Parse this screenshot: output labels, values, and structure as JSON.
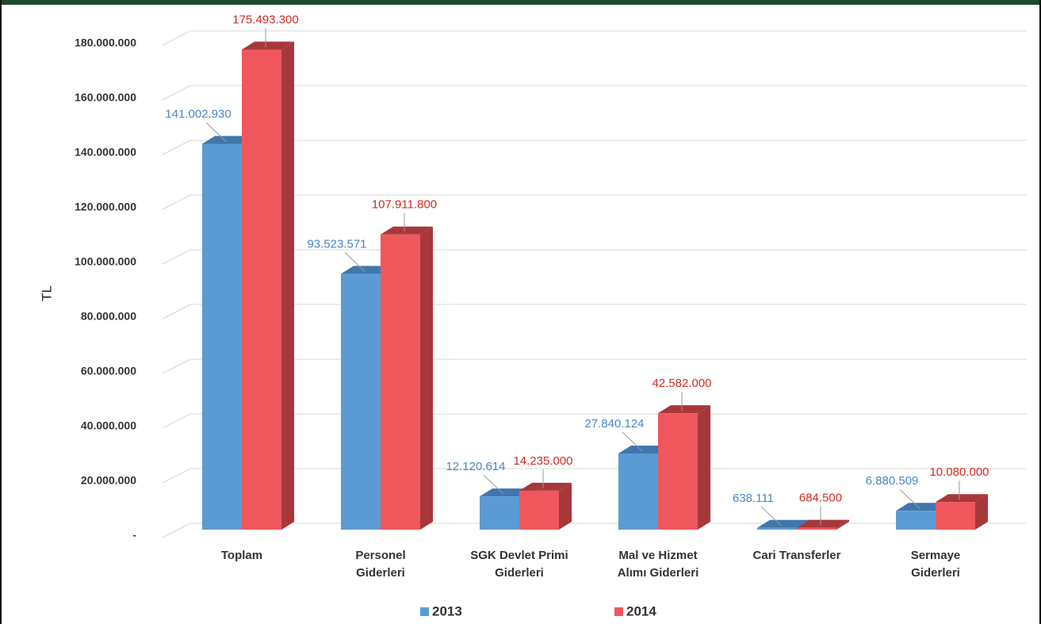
{
  "chart_data": {
    "type": "bar3d",
    "ylabel": "TL",
    "categories": [
      "Toplam",
      "Personel\nGiderleri",
      "SGK Devlet Primi\nGiderleri",
      "Mal ve Hizmet\nAlımı Giderleri",
      "Cari Transferler",
      "Sermaye\nGiderleri"
    ],
    "series": [
      {
        "name": "2013",
        "color": "#5b9bd5",
        "side": "#3f77ad",
        "label_color": "#4a86c8",
        "values": [
          141002930,
          93523571,
          12120614,
          27840124,
          638111,
          6880509
        ],
        "value_labels": [
          "141.002.930",
          "93.523.571",
          "12.120.614",
          "27.840.124",
          "638.111",
          "6.880.509"
        ]
      },
      {
        "name": "2014",
        "color": "#f0575d",
        "side": "#a8373b",
        "label_color": "#d42a22",
        "values": [
          175493300,
          107911800,
          14235000,
          42582000,
          684500,
          10080000
        ],
        "value_labels": [
          "175.493.300",
          "107.911.800",
          "14.235.000",
          "42.582.000",
          "684.500",
          "10.080.000"
        ]
      }
    ],
    "ylim": [
      0,
      180000000
    ],
    "yticks": [
      {
        "value": 0,
        "label": "-"
      },
      {
        "value": 20000000,
        "label": "20.000.000"
      },
      {
        "value": 40000000,
        "label": "40.000.000"
      },
      {
        "value": 60000000,
        "label": "60.000.000"
      },
      {
        "value": 80000000,
        "label": "80.000.000"
      },
      {
        "value": 100000000,
        "label": "100.000.000"
      },
      {
        "value": 120000000,
        "label": "120.000.000"
      },
      {
        "value": 140000000,
        "label": "140.000.000"
      },
      {
        "value": 160000000,
        "label": "160.000.000"
      },
      {
        "value": 180000000,
        "label": "180.000.000"
      }
    ],
    "grid": true
  }
}
